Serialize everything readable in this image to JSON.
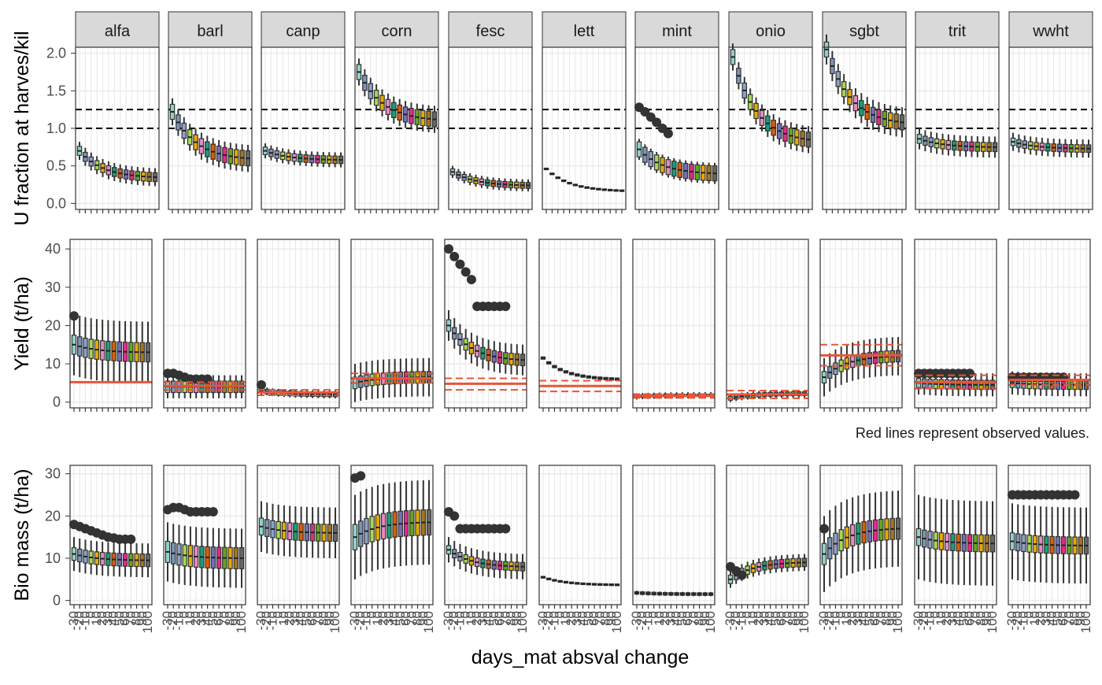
{
  "chart_data": {
    "type": "boxplot-facets",
    "crops": [
      "alfa",
      "barl",
      "canp",
      "corn",
      "fesc",
      "lett",
      "mint",
      "onio",
      "sgbt",
      "trit",
      "wwht"
    ],
    "xlabel": "days_mat absval change",
    "note": "Red lines represent observed values.",
    "x_tick_labels": [
      "-30",
      "-20",
      "-10",
      "0",
      "10",
      "20",
      "30",
      "40",
      "50",
      "60",
      "70",
      "80",
      "90",
      "100"
    ],
    "colors": {
      "strip_fill": "#d9d9d9",
      "grid": "#ebebeb",
      "frame": "#333333",
      "observed": "#e8553a",
      "palette": [
        "#8dd3c7",
        "#7b95b8",
        "#8da0cb",
        "#a6d854",
        "#e6ab02",
        "#e78ac3",
        "#1b9e77",
        "#d95f02",
        "#7570b3",
        "#e7298a",
        "#66a61e",
        "#e6ab02",
        "#a6761d",
        "#666666"
      ]
    },
    "rows": [
      {
        "id": "u_fraction",
        "ylabel": "U fraction at harves/kil",
        "ylim": [
          -0.08,
          2.08
        ],
        "yticks": [
          0.0,
          0.5,
          1.0,
          1.5,
          2.0
        ],
        "ytick_labels": [
          "0.0",
          "0.5",
          "1.0",
          "1.5",
          "2.0"
        ],
        "ref_lines": [
          1.0,
          1.25
        ],
        "series": [
          {
            "crop": "alfa",
            "start": 0.7,
            "end": 0.35,
            "spread": 0.06,
            "whisk": 0.12
          },
          {
            "crop": "barl",
            "start": 1.22,
            "end": 0.6,
            "spread": 0.1,
            "whisk": 0.18
          },
          {
            "crop": "canp",
            "start": 0.7,
            "end": 0.58,
            "spread": 0.05,
            "whisk": 0.1
          },
          {
            "crop": "corn",
            "start": 1.75,
            "end": 1.12,
            "spread": 0.1,
            "whisk": 0.18
          },
          {
            "crop": "fesc",
            "start": 0.42,
            "end": 0.24,
            "spread": 0.04,
            "whisk": 0.08
          },
          {
            "crop": "lett",
            "start": 0.46,
            "end": 0.17,
            "spread": 0.01,
            "whisk": 0.01
          },
          {
            "crop": "mint",
            "start": 0.72,
            "end": 0.4,
            "spread": 0.1,
            "whisk": 0.14,
            "outliers": [
              1.28,
              1.22,
              1.15,
              1.08,
              1.0,
              0.93
            ]
          },
          {
            "crop": "onio",
            "start": 1.95,
            "end": 0.85,
            "spread": 0.1,
            "whisk": 0.18
          },
          {
            "crop": "sgbt",
            "start": 2.05,
            "end": 1.08,
            "spread": 0.1,
            "whisk": 0.2
          },
          {
            "crop": "trit",
            "start": 0.86,
            "end": 0.75,
            "spread": 0.06,
            "whisk": 0.14
          },
          {
            "crop": "wwht",
            "start": 0.82,
            "end": 0.73,
            "spread": 0.05,
            "whisk": 0.12
          }
        ]
      },
      {
        "id": "yield",
        "ylabel": "Yield (t/ha)",
        "ylim": [
          -1.5,
          42.5
        ],
        "yticks": [
          0,
          10,
          20,
          30,
          40
        ],
        "ytick_labels": [
          "0",
          "10",
          "20",
          "30",
          "40"
        ],
        "series": [
          {
            "crop": "alfa",
            "start": 15,
            "end": 13,
            "spread": 2.5,
            "whisk": 8,
            "outliers": [
              22.5
            ],
            "obs": 5.2,
            "obs_dash": [
              5.2,
              5.2
            ]
          },
          {
            "crop": "barl",
            "start": 4,
            "end": 4,
            "spread": 1.5,
            "whisk": 3,
            "outliers": [
              7.5,
              7.5,
              7,
              6.5,
              6,
              6,
              6,
              6
            ],
            "obs": 4.2,
            "obs_dash": [
              3.2,
              5.2
            ]
          },
          {
            "crop": "canp",
            "start": 3,
            "end": 2,
            "spread": 0.6,
            "whisk": 1,
            "outliers": [
              4.5
            ],
            "obs": 2.5,
            "obs_dash": [
              1.8,
              3.2
            ]
          },
          {
            "crop": "corn",
            "start": 5,
            "end": 6.5,
            "spread": 1.5,
            "whisk": 5,
            "obs": 6.2,
            "obs_dash": [
              5,
              7.5
            ]
          },
          {
            "crop": "fesc",
            "start": 20,
            "end": 11,
            "spread": 1.5,
            "whisk": 4,
            "outliers": [
              40,
              38,
              36,
              34,
              32,
              25,
              25,
              25,
              25,
              25,
              25
            ],
            "obs": 4.8,
            "obs_dash": [
              3.2,
              6.2
            ]
          },
          {
            "crop": "lett",
            "start": 11.5,
            "end": 6,
            "spread": 0.3,
            "whisk": 0.3,
            "obs": 4.2,
            "obs_dash": [
              2.8,
              5.6
            ]
          },
          {
            "crop": "mint",
            "start": 1.5,
            "end": 1.8,
            "spread": 0.3,
            "whisk": 0.8,
            "obs": 1.6,
            "obs_dash": [
              1.1,
              2.1
            ]
          },
          {
            "crop": "onio",
            "start": 1,
            "end": 2.2,
            "spread": 0.5,
            "whisk": 1,
            "obs": 2,
            "obs_dash": [
              1,
              3
            ]
          },
          {
            "crop": "sgbt",
            "start": 6.5,
            "end": 12,
            "spread": 1.5,
            "whisk": 5,
            "obs": 12.2,
            "obs_dash": [
              9.5,
              15
            ]
          },
          {
            "crop": "trit",
            "start": 5,
            "end": 4.5,
            "spread": 1.2,
            "whisk": 3,
            "outliers": [
              7.5,
              7.5,
              7.5,
              7.5,
              7.5,
              7.5,
              7.5,
              7.5,
              7.5,
              7.5
            ],
            "obs": 5.2,
            "obs_dash": [
              3.5,
              7
            ]
          },
          {
            "crop": "wwht",
            "start": 5,
            "end": 4.5,
            "spread": 1.2,
            "whisk": 3,
            "outliers": [
              6.5,
              6.5,
              6.5,
              6.5,
              6.5,
              6.5,
              6.5,
              6.5,
              6.5,
              6.5
            ],
            "obs": 5.8,
            "obs_dash": [
              4.5,
              7
            ]
          }
        ]
      },
      {
        "id": "biomass",
        "ylabel": "Bio mass (t/ha)",
        "ylim": [
          -1,
          32
        ],
        "yticks": [
          0,
          10,
          20,
          30
        ],
        "ytick_labels": [
          "0",
          "10",
          "20",
          "30"
        ],
        "series": [
          {
            "crop": "alfa",
            "start": 11,
            "end": 9.5,
            "spread": 1.5,
            "whisk": 4,
            "outliers": [
              18,
              17.5,
              17,
              16.5,
              16,
              15.5,
              15,
              14.8,
              14.5,
              14.5,
              14.5
            ]
          },
          {
            "crop": "barl",
            "start": 11.5,
            "end": 10,
            "spread": 2.5,
            "whisk": 7,
            "outliers": [
              21.5,
              22,
              22,
              21.5,
              21,
              21,
              21,
              21,
              21
            ]
          },
          {
            "crop": "canp",
            "start": 17.5,
            "end": 16,
            "spread": 2,
            "whisk": 6
          },
          {
            "crop": "corn",
            "start": 15,
            "end": 18.5,
            "spread": 3,
            "whisk": 10,
            "outliers": [
              29,
              29.5
            ]
          },
          {
            "crop": "fesc",
            "start": 12,
            "end": 8,
            "spread": 1,
            "whisk": 3,
            "outliers": [
              21,
              20,
              17,
              17,
              17,
              17,
              17,
              17,
              17,
              17,
              17
            ]
          },
          {
            "crop": "lett",
            "start": 5.5,
            "end": 3.7,
            "spread": 0.2,
            "whisk": 0.2
          },
          {
            "crop": "mint",
            "start": 1.8,
            "end": 1.5,
            "spread": 0.3,
            "whisk": 0.5
          },
          {
            "crop": "onio",
            "start": 5,
            "end": 9,
            "spread": 1,
            "whisk": 2,
            "outliers": [
              8,
              7,
              6
            ]
          },
          {
            "crop": "sgbt",
            "start": 11,
            "end": 17,
            "spread": 2.5,
            "whisk": 9,
            "outliers": [
              17
            ]
          },
          {
            "crop": "trit",
            "start": 15,
            "end": 13.5,
            "spread": 2,
            "whisk": 10
          },
          {
            "crop": "wwht",
            "start": 14,
            "end": 13,
            "spread": 2,
            "whisk": 9,
            "outliers": [
              25,
              25,
              25,
              25,
              25,
              25,
              25,
              25,
              25,
              25,
              25,
              25
            ]
          }
        ]
      }
    ]
  }
}
